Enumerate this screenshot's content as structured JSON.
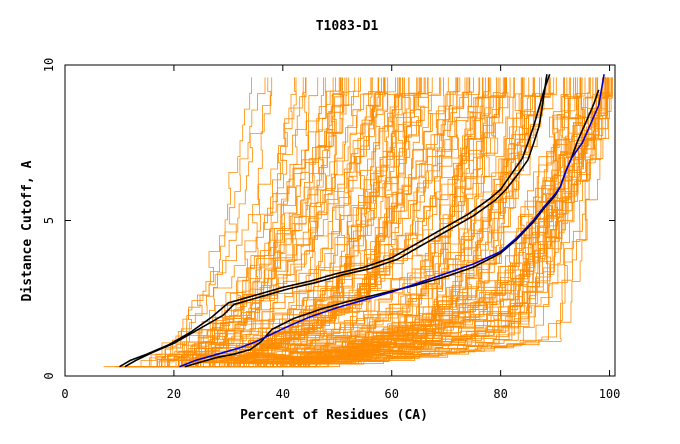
{
  "chart_data": {
    "type": "line",
    "title": "T1083-D1",
    "xlabel": "Percent of Residues (CA)",
    "ylabel": "Distance Cutoff, A",
    "xlim": [
      0,
      101
    ],
    "ylim": [
      0,
      10
    ],
    "xticks": [
      0,
      20,
      40,
      60,
      80,
      100
    ],
    "yticks": [
      0,
      5,
      10
    ],
    "grid": false,
    "colors": {
      "background_curves": "#ff8c00",
      "highlight_black": "#000000",
      "highlight_blue": "#0000cc"
    },
    "background_curve_count": 160,
    "highlight_series": [
      {
        "color": "#000000",
        "x": [
          10,
          12,
          15,
          19,
          23,
          27,
          30,
          35,
          40,
          45,
          50,
          55,
          60,
          65,
          70,
          74,
          78,
          80,
          82,
          84,
          85,
          86,
          87,
          88,
          89
        ],
        "y": [
          0.3,
          0.5,
          0.7,
          1.0,
          1.4,
          1.9,
          2.35,
          2.6,
          2.85,
          3.05,
          3.3,
          3.5,
          3.8,
          4.3,
          4.8,
          5.2,
          5.7,
          6.0,
          6.5,
          7.0,
          7.5,
          8.0,
          8.6,
          9.2,
          9.7
        ]
      },
      {
        "color": "#000000",
        "x": [
          11,
          13,
          16,
          20,
          24,
          29,
          31,
          36,
          41,
          46,
          51,
          56,
          61,
          66,
          71,
          75,
          79,
          81,
          83,
          85,
          86,
          87,
          87.5,
          88,
          88.5
        ],
        "y": [
          0.3,
          0.5,
          0.75,
          1.05,
          1.45,
          1.95,
          2.3,
          2.55,
          2.8,
          3.0,
          3.25,
          3.45,
          3.75,
          4.25,
          4.75,
          5.15,
          5.65,
          6.0,
          6.45,
          6.95,
          7.45,
          8.0,
          8.5,
          9.1,
          9.7
        ]
      },
      {
        "color": "#000000",
        "x": [
          22,
          25,
          28,
          31,
          34,
          36,
          38,
          42,
          47,
          52,
          58,
          64,
          70,
          75,
          80,
          83,
          86,
          88,
          90,
          91,
          92,
          93,
          94,
          95,
          96,
          97,
          98
        ],
        "y": [
          0.3,
          0.45,
          0.6,
          0.7,
          0.85,
          1.1,
          1.5,
          1.85,
          2.15,
          2.4,
          2.65,
          2.9,
          3.2,
          3.5,
          3.95,
          4.4,
          4.95,
          5.4,
          5.8,
          6.1,
          6.6,
          7.0,
          7.5,
          7.9,
          8.3,
          8.7,
          9.2
        ]
      },
      {
        "color": "#0000cc",
        "x": [
          21,
          24,
          28,
          32,
          35,
          38,
          41,
          45,
          50,
          55,
          60,
          65,
          70,
          75,
          80,
          83,
          86,
          88,
          90,
          91,
          92,
          93,
          95,
          96,
          97,
          98,
          98.5,
          99
        ],
        "y": [
          0.3,
          0.5,
          0.7,
          0.9,
          1.1,
          1.35,
          1.6,
          1.9,
          2.2,
          2.45,
          2.7,
          3.0,
          3.3,
          3.6,
          4.0,
          4.45,
          5.0,
          5.45,
          5.85,
          6.1,
          6.6,
          7.0,
          7.5,
          7.9,
          8.3,
          8.7,
          9.2,
          9.7
        ]
      }
    ]
  }
}
